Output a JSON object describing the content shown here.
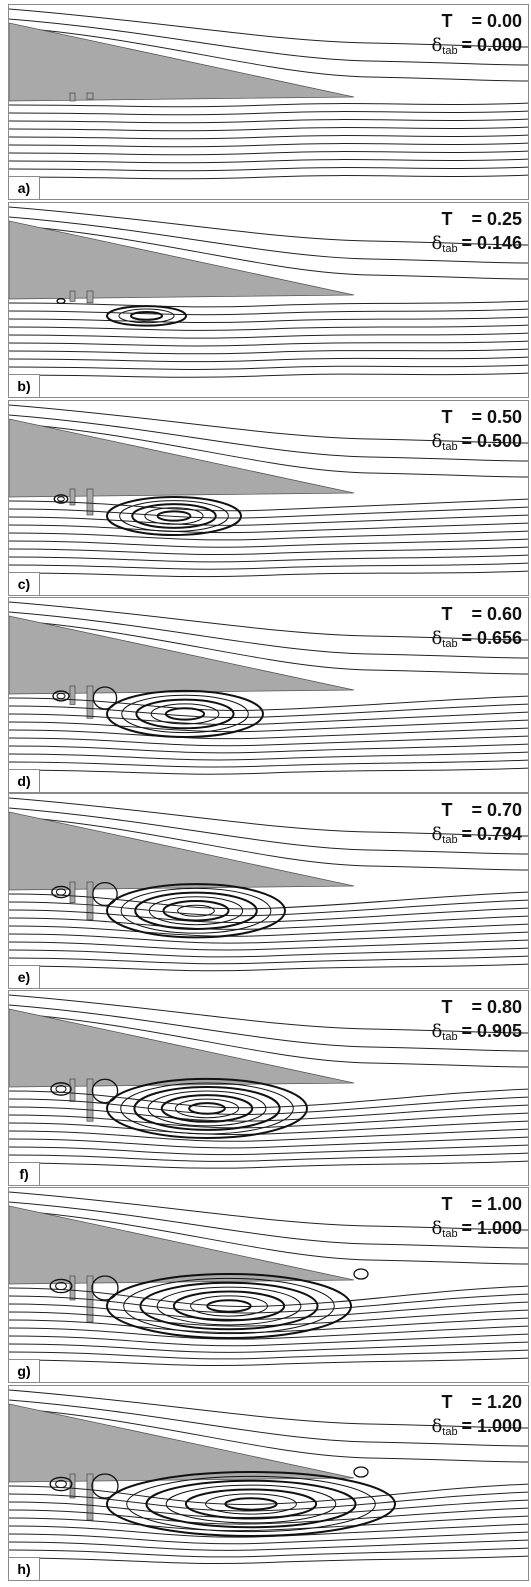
{
  "panels": [
    {
      "label": "a)",
      "T_label": "T",
      "T_value": "= 0.00",
      "delta_symbol": "δ",
      "delta_sub": "tab",
      "delta_value": "= 0.000",
      "tab": 0.0,
      "t": 0.0
    },
    {
      "label": "b)",
      "T_label": "T",
      "T_value": "= 0.25",
      "delta_symbol": "δ",
      "delta_sub": "tab",
      "delta_value": "= 0.146",
      "tab": 0.146,
      "t": 0.25
    },
    {
      "label": "c)",
      "T_label": "T",
      "T_value": "= 0.50",
      "delta_symbol": "δ",
      "delta_sub": "tab",
      "delta_value": "= 0.500",
      "tab": 0.5,
      "t": 0.5
    },
    {
      "label": "d)",
      "T_label": "T",
      "T_value": "= 0.60",
      "delta_symbol": "δ",
      "delta_sub": "tab",
      "delta_value": "= 0.656",
      "tab": 0.656,
      "t": 0.6
    },
    {
      "label": "e)",
      "T_label": "T",
      "T_value": "= 0.70",
      "delta_symbol": "δ",
      "delta_sub": "tab",
      "delta_value": "= 0.794",
      "tab": 0.794,
      "t": 0.7
    },
    {
      "label": "f)",
      "T_label": "T",
      "T_value": "= 0.80",
      "delta_symbol": "δ",
      "delta_sub": "tab",
      "delta_value": "= 0.905",
      "tab": 0.905,
      "t": 0.8
    },
    {
      "label": "g)",
      "T_label": "T",
      "T_value": "= 1.00",
      "delta_symbol": "δ",
      "delta_sub": "tab",
      "delta_value": "= 1.000",
      "tab": 1.0,
      "t": 1.0
    },
    {
      "label": "h)",
      "T_label": "T",
      "T_value": "= 1.20",
      "delta_symbol": "δ",
      "delta_sub": "tab",
      "delta_value": "= 1.000",
      "tab": 1.0,
      "t": 1.2
    }
  ],
  "colors": {
    "airfoil": "#a9a9a9",
    "streamline": "#222222",
    "border": "#8a8a8a"
  }
}
